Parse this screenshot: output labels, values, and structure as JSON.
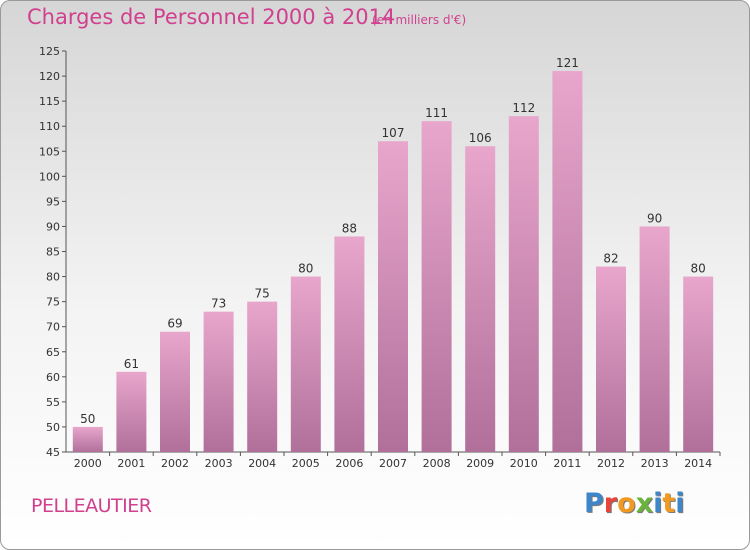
{
  "header": {
    "title": "Charges de Personnel 2000 à 2014",
    "subtitle": "(en milliers d'€)"
  },
  "footer": {
    "commune": "PELLEAUTIER",
    "logo_letters": [
      "P",
      "r",
      "o",
      "x",
      "i",
      "t",
      "i"
    ]
  },
  "colors": {
    "title": "#d0408e",
    "bar_top": "#e8a6cc",
    "bar_bottom": "#b0709a",
    "logo": [
      "#3e86c8",
      "#e8443a",
      "#f09a22",
      "#6ab43c",
      "#3e86c8",
      "#f09a22",
      "#3e86c8"
    ]
  },
  "chart_data": {
    "type": "bar",
    "categories": [
      "2000",
      "2001",
      "2002",
      "2003",
      "2004",
      "2005",
      "2006",
      "2007",
      "2008",
      "2009",
      "2010",
      "2011",
      "2012",
      "2013",
      "2014"
    ],
    "values": [
      50,
      61,
      69,
      73,
      75,
      80,
      88,
      107,
      111,
      106,
      112,
      121,
      82,
      90,
      80
    ],
    "value_labels": [
      "50",
      "61",
      "69",
      "73",
      "75",
      "80",
      "88",
      "107",
      "111",
      "106",
      "112",
      "121",
      "82",
      "90",
      "80"
    ],
    "y_ticks": [
      "45",
      "50",
      "55",
      "60",
      "65",
      "70",
      "75",
      "80",
      "85",
      "90",
      "95",
      "100",
      "105",
      "110",
      "115",
      "120",
      "125"
    ],
    "ylim": [
      45,
      125
    ],
    "grid": false,
    "legend": "none"
  }
}
